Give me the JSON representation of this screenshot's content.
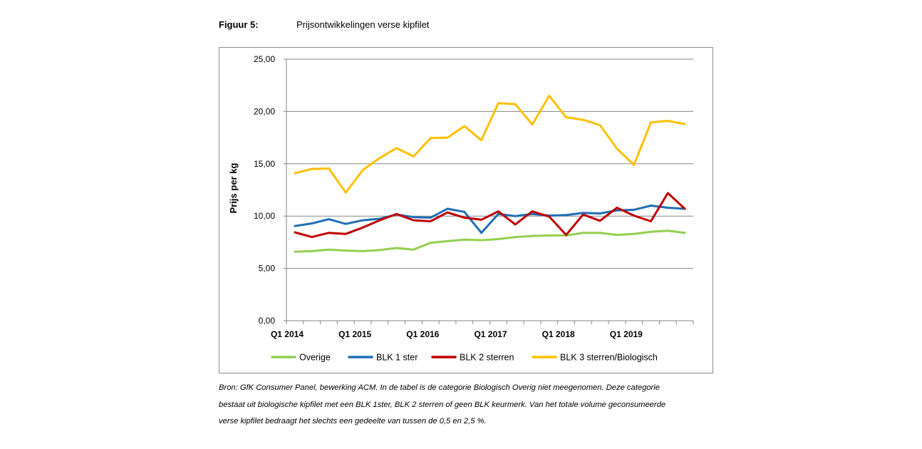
{
  "figure": {
    "label": "Figuur 5:",
    "title": "Prijsontwikkelingen verse kipfilet"
  },
  "source": {
    "lines": [
      "Bron: GfK Consumer Panel, bewerking ACM. In de tabel is de categorie Biologisch Overig niet meegenomen. Deze categorie",
      "bestaat uit biologische kipfilet met een BLK 1ster, BLK 2 sterren of geen BLK keurmerk. Van het totale volume geconsumeerde",
      "verse kipfilet bedraagt het slechts een gedeelte van tussen de 0,5 en 2,5 %."
    ]
  },
  "chart_data": {
    "type": "line",
    "title": "",
    "xlabel": "",
    "ylabel": "Prijs per kg",
    "ylim": [
      0,
      25
    ],
    "yticks": [
      "0,00",
      "5,00",
      "10,00",
      "15,00",
      "20,00",
      "25,00"
    ],
    "grid": "horizontal",
    "legend_position": "bottom",
    "x": [
      "Q1 2014",
      "Q2 2014",
      "Q3 2014",
      "Q4 2014",
      "Q1 2015",
      "Q2 2015",
      "Q3 2015",
      "Q4 2015",
      "Q1 2016",
      "Q2 2016",
      "Q3 2016",
      "Q4 2016",
      "Q1 2017",
      "Q2 2017",
      "Q3 2017",
      "Q4 2017",
      "Q1 2018",
      "Q2 2018",
      "Q3 2018",
      "Q4 2018",
      "Q1 2019",
      "Q2 2019",
      "Q3 2019",
      "Q4 2019"
    ],
    "x_tick_labels": [
      "Q1 2014",
      "Q1 2015",
      "Q1 2016",
      "Q1 2017",
      "Q1 2018",
      "Q1 2019"
    ],
    "series": [
      {
        "name": "Overige",
        "color": "#92d050",
        "values": [
          6.6,
          6.65,
          6.8,
          6.7,
          6.65,
          6.75,
          6.95,
          6.8,
          7.45,
          7.6,
          7.75,
          7.7,
          7.8,
          8.0,
          8.1,
          8.15,
          8.15,
          8.4,
          8.4,
          8.2,
          8.3,
          8.5,
          8.6,
          8.4
        ]
      },
      {
        "name": "BLK 1 ster",
        "color": "#1f6fb5",
        "values": [
          9.05,
          9.3,
          9.7,
          9.25,
          9.6,
          9.75,
          10.15,
          9.9,
          9.85,
          10.7,
          10.4,
          8.4,
          10.2,
          10.0,
          10.2,
          10.05,
          10.1,
          10.3,
          10.25,
          10.55,
          10.6,
          11.0,
          10.8,
          10.7
        ]
      },
      {
        "name": "BLK 2 sterren",
        "color": "#c00000",
        "values": [
          8.45,
          8.0,
          8.4,
          8.3,
          8.9,
          9.6,
          10.2,
          9.6,
          9.5,
          10.35,
          9.85,
          9.65,
          10.45,
          9.2,
          10.45,
          9.95,
          8.2,
          10.15,
          9.55,
          10.8,
          10.05,
          9.5,
          12.2,
          10.7
        ]
      },
      {
        "name": "BLK 3 sterren/Biologisch",
        "color": "#ffc000",
        "values": [
          14.1,
          14.5,
          14.55,
          12.25,
          14.4,
          15.55,
          16.5,
          15.7,
          17.45,
          17.5,
          18.6,
          17.25,
          20.8,
          20.7,
          18.75,
          21.5,
          19.45,
          19.2,
          18.7,
          16.45,
          14.9,
          18.95,
          19.1,
          18.8
        ]
      }
    ]
  }
}
